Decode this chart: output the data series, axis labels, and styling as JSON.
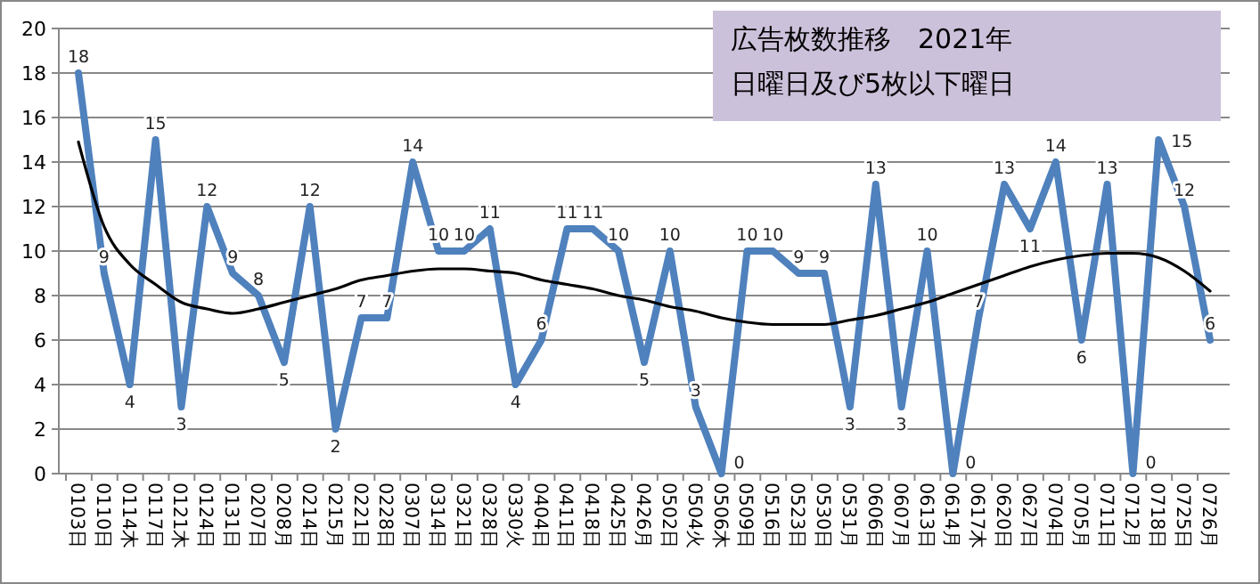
{
  "chart_data": {
    "type": "line",
    "title": "広告枚数推移　2021年",
    "subtitle": "日曜日及び5枚以下曜日",
    "categories": [
      "0103日",
      "0110日",
      "0114木",
      "0117日",
      "0121木",
      "0124日",
      "0131日",
      "0207日",
      "0208月",
      "0214日",
      "0215月",
      "0221日",
      "0228日",
      "0307日",
      "0314日",
      "0321日",
      "0328日",
      "0330火",
      "0404日",
      "0411日",
      "0418日",
      "0425日",
      "0426月",
      "0502日",
      "0504火",
      "0506木",
      "0509日",
      "0516日",
      "0523日",
      "0530日",
      "0531月",
      "0606日",
      "0607月",
      "0613日",
      "0614月",
      "0617木",
      "0620日",
      "0627日",
      "0704日",
      "0705月",
      "0711日",
      "0712月",
      "0718日",
      "0725日",
      "0726月"
    ],
    "series": [
      {
        "color": "#4f81bd",
        "data_labels": true,
        "values": [
          18,
          9,
          4,
          15,
          3,
          12,
          9,
          8,
          5,
          12,
          2,
          7,
          7,
          14,
          10,
          10,
          11,
          4,
          6,
          11,
          11,
          10,
          5,
          10,
          3,
          0,
          10,
          10,
          9,
          9,
          3,
          13,
          3,
          10,
          0,
          7,
          13,
          11,
          14,
          6,
          13,
          0,
          15,
          12,
          6
        ]
      },
      {
        "color": "#000000",
        "values": [
          14.9,
          11.1,
          9.4,
          8.5,
          7.7,
          7.4,
          7.2,
          7.4,
          7.7,
          8.0,
          8.3,
          8.7,
          8.9,
          9.1,
          9.2,
          9.2,
          9.1,
          9.0,
          8.7,
          8.5,
          8.3,
          8.0,
          7.8,
          7.5,
          7.3,
          7.0,
          6.8,
          6.7,
          6.7,
          6.7,
          6.9,
          7.1,
          7.4,
          7.7,
          8.1,
          8.5,
          8.9,
          9.3,
          9.6,
          9.8,
          9.9,
          9.9,
          9.7,
          9.1,
          8.2
        ]
      }
    ],
    "ylim": [
      0,
      20
    ],
    "yticks": [
      0,
      2,
      4,
      6,
      8,
      10,
      12,
      14,
      16,
      18,
      20
    ],
    "grid": "y",
    "marker": "none"
  }
}
